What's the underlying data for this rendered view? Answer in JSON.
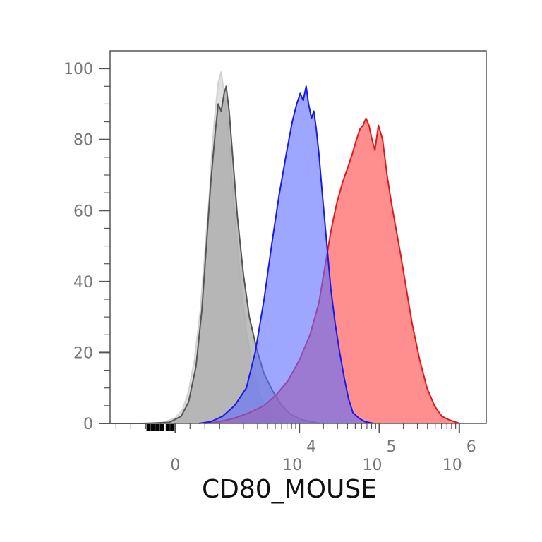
{
  "chart_data": {
    "type": "area",
    "title": "",
    "xlabel": "CD80_MOUSE",
    "ylabel": "",
    "ylim": [
      0,
      105
    ],
    "y_ticks": [
      {
        "value": 0,
        "label": "0"
      },
      {
        "value": 20,
        "label": "20"
      },
      {
        "value": 40,
        "label": "40"
      },
      {
        "value": 60,
        "label": "60"
      },
      {
        "value": 80,
        "label": "80"
      },
      {
        "value": 100,
        "label": "100"
      }
    ],
    "x_scale": "biexponential",
    "x_ticks": [
      {
        "value": "0",
        "base": "0",
        "exp": ""
      },
      {
        "value": "1e4",
        "base": "10",
        "exp": "4"
      },
      {
        "value": "1e5",
        "base": "10",
        "exp": "5"
      },
      {
        "value": "1e6",
        "base": "10",
        "exp": "6"
      }
    ],
    "legend": "none",
    "grid": false,
    "colors": {
      "light_gray_line": "#d2d2d2",
      "light_gray_fill": "#d8d8d8",
      "dark_gray_line": "#555555",
      "dark_gray_fill": "#a8a8a8",
      "blue_line": "#1a1ae6",
      "blue_fill": "#5c6cff",
      "red_line": "#e01a1a",
      "red_fill": "#ff5a5a",
      "axis": "#555555"
    },
    "series": [
      {
        "id": "light-gray",
        "x": [
          -2.2,
          -1.2,
          -0.4,
          0.0,
          0.25,
          0.45,
          0.65,
          0.85,
          1.0,
          1.15,
          1.25,
          1.35,
          1.45,
          1.55,
          1.65,
          1.78,
          1.9,
          2.05,
          2.2,
          2.4,
          2.6,
          2.85,
          3.1,
          3.4,
          3.8
        ],
        "y": [
          0,
          0,
          0.3,
          1.5,
          4,
          9,
          18,
          32,
          48,
          64,
          78,
          88,
          96,
          99,
          93,
          84,
          70,
          54,
          40,
          26,
          16,
          8,
          4,
          1.5,
          0
        ]
      },
      {
        "id": "dark-gray",
        "x": [
          -2.2,
          -1.0,
          -0.2,
          0.2,
          0.45,
          0.7,
          0.9,
          1.05,
          1.2,
          1.35,
          1.45,
          1.55,
          1.65,
          1.72,
          1.82,
          1.95,
          2.1,
          2.3,
          2.5,
          2.75,
          3.0,
          3.3,
          3.6,
          3.9,
          4.3,
          4.9
        ],
        "y": [
          0,
          0,
          0.3,
          2,
          6,
          16,
          32,
          50,
          68,
          82,
          90,
          88,
          93,
          95,
          88,
          74,
          58,
          42,
          30,
          21,
          14,
          9,
          5,
          2.5,
          1,
          0
        ]
      },
      {
        "id": "blue",
        "x": [
          0.8,
          1.2,
          1.6,
          2.0,
          2.4,
          2.7,
          3.0,
          3.25,
          3.5,
          3.75,
          3.95,
          4.1,
          4.22,
          4.32,
          4.42,
          4.5,
          4.6,
          4.68,
          4.76,
          4.85,
          4.95,
          5.1,
          5.25,
          5.4,
          5.55,
          5.7,
          5.85,
          6.0,
          6.2,
          6.4,
          6.7
        ],
        "y": [
          0,
          0.5,
          2,
          5,
          10,
          20,
          35,
          50,
          64,
          76,
          85,
          90,
          93,
          91,
          95,
          90,
          86,
          88,
          83,
          76,
          66,
          52,
          38,
          28,
          20,
          13,
          7,
          3,
          1.5,
          0.5,
          0
        ]
      },
      {
        "id": "red",
        "x": [
          1.0,
          1.5,
          2.0,
          2.5,
          3.0,
          3.4,
          3.8,
          4.2,
          4.55,
          4.85,
          5.05,
          5.25,
          5.45,
          5.65,
          5.82,
          5.98,
          6.12,
          6.24,
          6.34,
          6.44,
          6.54,
          6.64,
          6.74,
          6.86,
          7.0,
          7.15,
          7.3,
          7.45,
          7.6,
          7.8,
          8.0,
          8.25,
          8.5,
          8.75,
          9.0,
          9.25,
          9.6
        ],
        "y": [
          0,
          0.5,
          1.5,
          3,
          5,
          8,
          12,
          18,
          25,
          34,
          44,
          54,
          62,
          68,
          72,
          76,
          80,
          83,
          84,
          86,
          84,
          80,
          77,
          84,
          80,
          70,
          62,
          55,
          48,
          38,
          28,
          18,
          10,
          5,
          2,
          1,
          0
        ]
      }
    ]
  }
}
